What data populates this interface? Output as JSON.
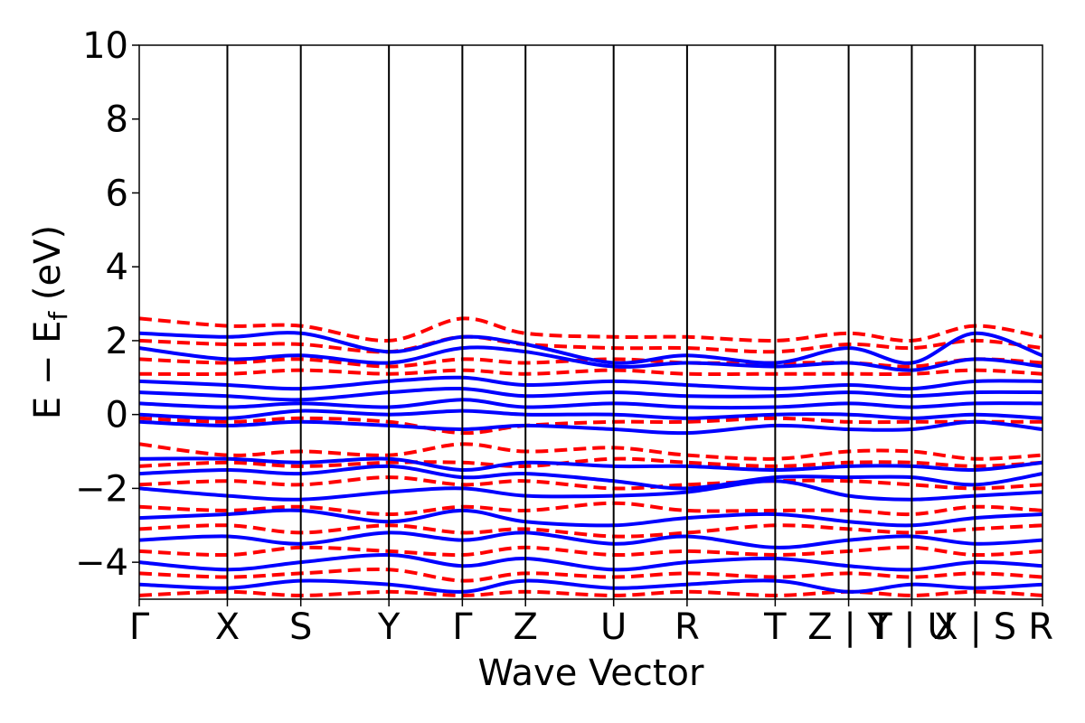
{
  "chart_data": {
    "type": "line",
    "xlabel": "Wave Vector",
    "ylabel": "E − E",
    "ylabel_sub": "f",
    "ylabel_unit": " (eV)",
    "ylim": [
      -5,
      10
    ],
    "yticks": [
      -4,
      -2,
      0,
      2,
      4,
      6,
      8,
      10
    ],
    "ytick_labels": [
      "−4",
      "−2",
      "0",
      "2",
      "4",
      "6",
      "8",
      "10"
    ],
    "xlim": [
      0,
      12.3
    ],
    "kpoints": [
      {
        "label": "Γ",
        "x": 0.0
      },
      {
        "label": "X",
        "x": 1.2
      },
      {
        "label": "S",
        "x": 2.2
      },
      {
        "label": "Y",
        "x": 3.4
      },
      {
        "label": "Γ",
        "x": 4.4
      },
      {
        "label": "Z",
        "x": 5.26
      },
      {
        "label": "U",
        "x": 6.46
      },
      {
        "label": "R",
        "x": 7.46
      },
      {
        "label": "T",
        "x": 8.66
      },
      {
        "label": "Z | Y",
        "x": 9.66
      },
      {
        "label": "T | U",
        "x": 10.52
      },
      {
        "label": "X | S",
        "x": 11.38
      },
      {
        "label": "R",
        "x": 12.3
      }
    ],
    "segment_breaks": [
      9.66,
      10.52,
      11.38
    ],
    "colors": {
      "series_a": "#0000ff",
      "series_b": "#ff0000"
    },
    "series": [
      {
        "style": "solid",
        "color": "#0000ff",
        "bands": [
          {
            "x": [
              0,
              1.2,
              2.2,
              3.4,
              4.4,
              5.26,
              6.46,
              7.46,
              8.66,
              9.66,
              10.52,
              11.38,
              12.3
            ],
            "y": [
              2.2,
              2.1,
              2.2,
              1.7,
              2.1,
              1.9,
              1.4,
              1.6,
              1.4,
              1.8,
              1.4,
              2.2,
              1.6
            ]
          },
          {
            "x": [
              0,
              1.2,
              2.2,
              3.4,
              4.4,
              5.26,
              6.46,
              7.46,
              8.66,
              9.66,
              10.52,
              11.38,
              12.3
            ],
            "y": [
              1.8,
              1.5,
              1.6,
              1.4,
              1.8,
              1.7,
              1.3,
              1.4,
              1.3,
              1.4,
              1.2,
              1.5,
              1.3
            ]
          },
          {
            "x": [
              0,
              1.2,
              2.2,
              3.4,
              4.4,
              5.26,
              6.46,
              7.46,
              8.66,
              9.66,
              10.52,
              11.38,
              12.3
            ],
            "y": [
              0.9,
              0.8,
              0.7,
              0.9,
              1.0,
              0.8,
              0.9,
              0.8,
              0.7,
              0.8,
              0.7,
              0.9,
              0.9
            ]
          },
          {
            "x": [
              0,
              1.2,
              2.2,
              3.4,
              4.4,
              5.26,
              6.46,
              7.46,
              8.66,
              9.66,
              10.52,
              11.38,
              12.3
            ],
            "y": [
              0.6,
              0.5,
              0.4,
              0.6,
              0.7,
              0.5,
              0.6,
              0.5,
              0.5,
              0.6,
              0.5,
              0.6,
              0.6
            ]
          },
          {
            "x": [
              0,
              1.2,
              2.2,
              3.4,
              4.4,
              5.26,
              6.46,
              7.46,
              8.66,
              9.66,
              10.52,
              11.38,
              12.3
            ],
            "y": [
              0.3,
              0.2,
              0.3,
              0.2,
              0.4,
              0.2,
              0.3,
              0.2,
              0.2,
              0.3,
              0.2,
              0.3,
              0.3
            ]
          },
          {
            "x": [
              0,
              1.2,
              2.2,
              3.4,
              4.4,
              5.26,
              6.46,
              7.46,
              8.66,
              9.66,
              10.52,
              11.38,
              12.3
            ],
            "y": [
              0.0,
              -0.1,
              0.1,
              0.0,
              0.1,
              0.0,
              0.0,
              -0.1,
              0.0,
              0.0,
              -0.1,
              0.0,
              -0.1
            ]
          },
          {
            "x": [
              0,
              1.2,
              2.2,
              3.4,
              4.4,
              5.26,
              6.46,
              7.46,
              8.66,
              9.66,
              10.52,
              11.38,
              12.3
            ],
            "y": [
              -0.2,
              -0.3,
              -0.2,
              -0.3,
              -0.4,
              -0.3,
              -0.4,
              -0.5,
              -0.3,
              -0.4,
              -0.4,
              -0.2,
              -0.4
            ]
          },
          {
            "x": [
              0,
              1.2,
              2.2,
              3.4,
              4.4,
              5.26,
              6.46,
              7.46,
              8.66,
              9.66,
              10.52,
              11.38,
              12.3
            ],
            "y": [
              -1.2,
              -1.2,
              -1.3,
              -1.2,
              -1.5,
              -1.3,
              -1.4,
              -1.4,
              -1.5,
              -1.4,
              -1.4,
              -1.5,
              -1.3
            ]
          },
          {
            "x": [
              0,
              1.2,
              2.2,
              3.4,
              4.4,
              5.26,
              6.46,
              7.46,
              8.66,
              9.66,
              10.52,
              11.38,
              12.3
            ],
            "y": [
              -1.6,
              -1.5,
              -1.6,
              -1.4,
              -1.7,
              -1.6,
              -1.8,
              -2.0,
              -1.7,
              -1.7,
              -1.7,
              -1.9,
              -1.6
            ]
          },
          {
            "x": [
              0,
              1.2,
              2.2,
              3.4,
              4.4,
              5.26,
              6.46,
              7.46,
              8.66,
              9.66,
              10.52,
              11.38,
              12.3
            ],
            "y": [
              -2.0,
              -2.2,
              -2.3,
              -2.1,
              -2.0,
              -2.2,
              -2.2,
              -2.1,
              -1.8,
              -2.2,
              -2.3,
              -2.2,
              -2.1
            ]
          },
          {
            "x": [
              0,
              1.2,
              2.2,
              3.4,
              4.4,
              5.26,
              6.46,
              7.46,
              8.66,
              9.66,
              10.52,
              11.38,
              12.3
            ],
            "y": [
              -2.8,
              -2.7,
              -2.6,
              -2.9,
              -2.6,
              -2.9,
              -3.0,
              -2.8,
              -2.7,
              -2.9,
              -3.0,
              -2.8,
              -2.7
            ]
          },
          {
            "x": [
              0,
              1.2,
              2.2,
              3.4,
              4.4,
              5.26,
              6.46,
              7.46,
              8.66,
              9.66,
              10.52,
              11.38,
              12.3
            ],
            "y": [
              -3.4,
              -3.3,
              -3.5,
              -3.2,
              -3.4,
              -3.2,
              -3.5,
              -3.3,
              -3.6,
              -3.4,
              -3.3,
              -3.5,
              -3.4
            ]
          },
          {
            "x": [
              0,
              1.2,
              2.2,
              3.4,
              4.4,
              5.26,
              6.46,
              7.46,
              8.66,
              9.66,
              10.52,
              11.38,
              12.3
            ],
            "y": [
              -4.0,
              -4.2,
              -4.0,
              -3.8,
              -4.1,
              -3.9,
              -4.2,
              -4.0,
              -3.9,
              -4.1,
              -4.2,
              -4.0,
              -4.1
            ]
          },
          {
            "x": [
              0,
              1.2,
              2.2,
              3.4,
              4.4,
              5.26,
              6.46,
              7.46,
              8.66,
              9.66,
              10.52,
              11.38,
              12.3
            ],
            "y": [
              -4.6,
              -4.7,
              -4.5,
              -4.6,
              -4.8,
              -4.5,
              -4.7,
              -4.6,
              -4.5,
              -4.8,
              -4.6,
              -4.7,
              -4.6
            ]
          }
        ]
      },
      {
        "style": "dashed",
        "color": "#ff0000",
        "bands": [
          {
            "x": [
              0,
              1.2,
              2.2,
              3.4,
              4.4,
              5.26,
              6.46,
              7.46,
              8.66,
              9.66,
              10.52,
              11.38,
              12.3
            ],
            "y": [
              2.6,
              2.4,
              2.4,
              2.0,
              2.6,
              2.2,
              2.1,
              2.1,
              2.0,
              2.2,
              2.0,
              2.4,
              2.1
            ]
          },
          {
            "x": [
              0,
              1.2,
              2.2,
              3.4,
              4.4,
              5.26,
              6.46,
              7.46,
              8.66,
              9.66,
              10.52,
              11.38,
              12.3
            ],
            "y": [
              2.0,
              1.9,
              1.9,
              1.7,
              2.1,
              1.9,
              1.8,
              1.8,
              1.7,
              1.9,
              1.8,
              2.0,
              1.8
            ]
          },
          {
            "x": [
              0,
              1.2,
              2.2,
              3.4,
              4.4,
              5.26,
              6.46,
              7.46,
              8.66,
              9.66,
              10.52,
              11.38,
              12.3
            ],
            "y": [
              1.5,
              1.4,
              1.5,
              1.3,
              1.5,
              1.4,
              1.5,
              1.4,
              1.4,
              1.4,
              1.3,
              1.5,
              1.4
            ]
          },
          {
            "x": [
              0,
              1.2,
              2.2,
              3.4,
              4.4,
              5.26,
              6.46,
              7.46,
              8.66,
              9.66,
              10.52,
              11.38,
              12.3
            ],
            "y": [
              1.1,
              1.1,
              1.2,
              1.1,
              1.2,
              1.1,
              1.2,
              1.1,
              1.1,
              1.1,
              1.1,
              1.2,
              1.1
            ]
          },
          {
            "x": [
              0,
              1.2,
              2.2,
              3.4,
              4.4,
              5.26,
              6.46,
              7.46,
              8.66,
              9.66,
              10.52,
              11.38,
              12.3
            ],
            "y": [
              -0.1,
              -0.2,
              -0.1,
              -0.2,
              -0.5,
              -0.3,
              -0.2,
              -0.2,
              -0.1,
              -0.2,
              -0.2,
              -0.2,
              -0.2
            ]
          },
          {
            "x": [
              0,
              1.2,
              2.2,
              3.4,
              4.4,
              5.26,
              6.46,
              7.46,
              8.66,
              9.66,
              10.52,
              11.38,
              12.3
            ],
            "y": [
              -0.8,
              -1.1,
              -1.0,
              -1.1,
              -0.8,
              -1.0,
              -0.9,
              -1.1,
              -1.2,
              -1.0,
              -1.0,
              -1.2,
              -1.1
            ]
          },
          {
            "x": [
              0,
              1.2,
              2.2,
              3.4,
              4.4,
              5.26,
              6.46,
              7.46,
              8.66,
              9.66,
              10.52,
              11.38,
              12.3
            ],
            "y": [
              -1.4,
              -1.3,
              -1.4,
              -1.3,
              -1.3,
              -1.4,
              -1.2,
              -1.3,
              -1.4,
              -1.3,
              -1.3,
              -1.4,
              -1.3
            ]
          },
          {
            "x": [
              0,
              1.2,
              2.2,
              3.4,
              4.4,
              5.26,
              6.46,
              7.46,
              8.66,
              9.66,
              10.52,
              11.38,
              12.3
            ],
            "y": [
              -1.9,
              -1.8,
              -1.9,
              -1.7,
              -1.9,
              -1.8,
              -2.0,
              -1.9,
              -1.8,
              -1.8,
              -1.9,
              -2.0,
              -1.9
            ]
          },
          {
            "x": [
              0,
              1.2,
              2.2,
              3.4,
              4.4,
              5.26,
              6.46,
              7.46,
              8.66,
              9.66,
              10.52,
              11.38,
              12.3
            ],
            "y": [
              -2.5,
              -2.6,
              -2.5,
              -2.7,
              -2.5,
              -2.6,
              -2.4,
              -2.6,
              -2.6,
              -2.6,
              -2.7,
              -2.5,
              -2.6
            ]
          },
          {
            "x": [
              0,
              1.2,
              2.2,
              3.4,
              4.4,
              5.26,
              6.46,
              7.46,
              8.66,
              9.66,
              10.52,
              11.38,
              12.3
            ],
            "y": [
              -3.1,
              -3.0,
              -3.2,
              -3.0,
              -3.2,
              -3.1,
              -3.3,
              -3.2,
              -3.0,
              -3.1,
              -3.2,
              -3.1,
              -3.0
            ]
          },
          {
            "x": [
              0,
              1.2,
              2.2,
              3.4,
              4.4,
              5.26,
              6.46,
              7.46,
              8.66,
              9.66,
              10.52,
              11.38,
              12.3
            ],
            "y": [
              -3.7,
              -3.8,
              -3.6,
              -3.7,
              -3.8,
              -3.6,
              -3.8,
              -3.7,
              -3.8,
              -3.7,
              -3.6,
              -3.8,
              -3.7
            ]
          },
          {
            "x": [
              0,
              1.2,
              2.2,
              3.4,
              4.4,
              5.26,
              6.46,
              7.46,
              8.66,
              9.66,
              10.52,
              11.38,
              12.3
            ],
            "y": [
              -4.3,
              -4.4,
              -4.3,
              -4.2,
              -4.5,
              -4.3,
              -4.4,
              -4.3,
              -4.4,
              -4.3,
              -4.4,
              -4.3,
              -4.4
            ]
          },
          {
            "x": [
              0,
              1.2,
              2.2,
              3.4,
              4.4,
              5.26,
              6.46,
              7.46,
              8.66,
              9.66,
              10.52,
              11.38,
              12.3
            ],
            "y": [
              -4.9,
              -4.8,
              -4.9,
              -4.8,
              -4.9,
              -4.8,
              -4.9,
              -4.8,
              -4.9,
              -4.8,
              -4.9,
              -4.8,
              -4.9
            ]
          }
        ]
      }
    ]
  }
}
